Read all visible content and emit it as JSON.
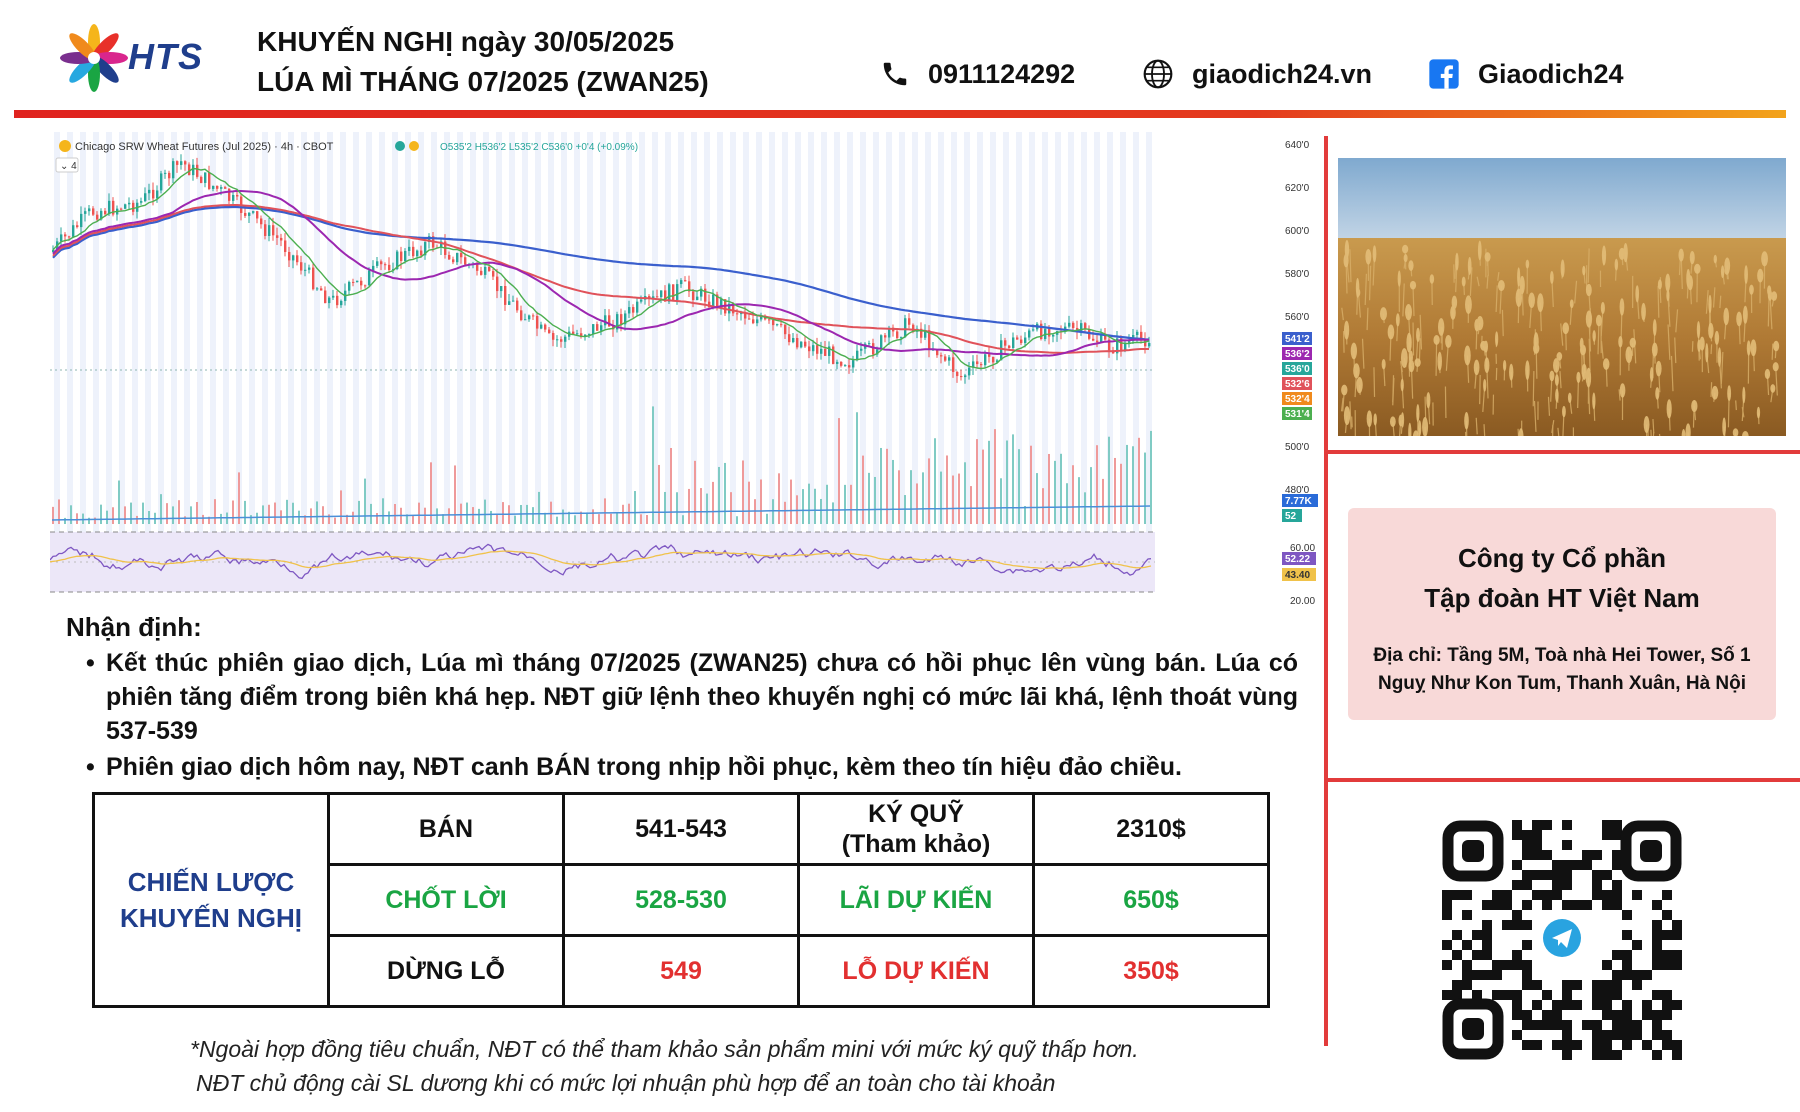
{
  "header": {
    "logo_text": "HTS",
    "title_line1": "KHUYẾN NGHỊ ngày 30/05/2025",
    "title_line2": "LÚA MÌ THÁNG 07/2025 (ZWAN25)",
    "phone": "0911124292",
    "website": "giaodich24.vn",
    "facebook": "Giaodich24"
  },
  "chart": {
    "symbol_line": "Chicago SRW Wheat Futures (Jul 2025) · 4h · CBOT",
    "ohlc_line": "O535'2 H536'2 L535'2 C536'0 +0'4 (+0.09%)",
    "vol_badge": "4",
    "price_axis": [
      "640'0",
      "620'0",
      "600'0",
      "580'0",
      "560'0",
      "500'0",
      "480'0"
    ],
    "price_tags": [
      "541'2",
      "536'2",
      "536'0",
      "532'6",
      "532'4",
      "531'4"
    ],
    "volume_tags": [
      "7.77K",
      "52"
    ],
    "rsi_axis": [
      "60.00",
      "20.00"
    ],
    "rsi_tags": [
      "52.22",
      "43.40"
    ]
  },
  "company": {
    "name_line1": "Công ty Cổ phần",
    "name_line2": "Tập đoàn HT Việt Nam",
    "address": "Địa chỉ: Tầng 5M, Toà nhà Hei Tower, Số 1 Nguỵ Như Kon Tum, Thanh Xuân, Hà Nội"
  },
  "analysis": {
    "title": "Nhận định:",
    "bullet1": "Kết thúc phiên giao dịch, Lúa mì tháng 07/2025 (ZWAN25) chưa có hồi phục lên vùng bán. Lúa có phiên tăng điểm trong biên khá hẹp. NĐT giữ lệnh theo khuyến nghị có mức lãi khá, lệnh thoát vùng 537-539",
    "bullet2": "Phiên giao dịch hôm nay, NĐT canh BÁN trong nhịp hồi phục, kèm theo tín hiệu đảo chiều."
  },
  "strategy": {
    "label_line1": "CHIẾN LƯỢC",
    "label_line2": "KHUYẾN NGHỊ",
    "rows": [
      {
        "action": "BÁN",
        "value": "541-543",
        "metric_line1": "KÝ QUỸ",
        "metric_line2": "(Tham khảo)",
        "amount": "2310$"
      },
      {
        "action": "CHỐT LỜI",
        "value": "528-530",
        "metric_line1": "LÃI DỰ KIẾN",
        "metric_line2": "",
        "amount": "650$"
      },
      {
        "action": "DỪNG LỖ",
        "value": "549",
        "metric_line1": "LỖ DỰ KIẾN",
        "metric_line2": "",
        "amount": "350$"
      }
    ]
  },
  "notes": {
    "line1": "*Ngoài hợp đồng tiêu chuẩn, NĐT có thể tham khảo sản phẩm mini với mức ký quỹ thấp hơn.",
    "line2": "NĐT chủ động cài SL dương khi có mức lợi nhuận phù hợp để an toàn cho tài khoản"
  },
  "colors": {
    "accent_red": "#e23b3b",
    "brand_blue": "#1f3e8c",
    "profit_green": "#1aa543",
    "loss_red": "#e23030"
  }
}
